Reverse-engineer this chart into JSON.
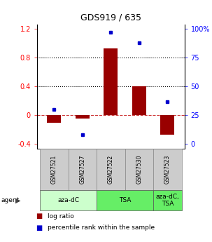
{
  "title": "GDS919 / 635",
  "samples": [
    "GSM27521",
    "GSM27527",
    "GSM27522",
    "GSM27530",
    "GSM27523"
  ],
  "log_ratio": [
    -0.1,
    -0.05,
    0.93,
    0.4,
    -0.27
  ],
  "percentile_rank": [
    30,
    8,
    97,
    88,
    37
  ],
  "agents": [
    {
      "label": "aza-dC",
      "start": 0,
      "end": 2,
      "color": "#ccffcc"
    },
    {
      "label": "TSA",
      "start": 2,
      "end": 4,
      "color": "#66ee66"
    },
    {
      "label": "aza-dC,\nTSA",
      "start": 4,
      "end": 5,
      "color": "#66ee66"
    }
  ],
  "bar_color": "#990000",
  "dot_color": "#0000cc",
  "left_yticks": [
    -0.4,
    0.0,
    0.4,
    0.8,
    1.2
  ],
  "left_yticklabels": [
    "-0.4",
    "0",
    "0.4",
    "0.8",
    "1.2"
  ],
  "right_yticks": [
    0,
    25,
    50,
    75,
    100
  ],
  "right_yticklabels": [
    "0",
    "25",
    "50",
    "75",
    "100%"
  ],
  "hline_dotted": [
    0.4,
    0.8
  ],
  "hline_dashed": [
    0.0
  ],
  "ylim_left": [
    -0.4667,
    1.2667
  ],
  "legend_items": [
    {
      "color": "#990000",
      "label": "log ratio"
    },
    {
      "color": "#0000cc",
      "label": "percentile rank within the sample"
    }
  ],
  "sample_bg": "#cccccc",
  "bar_width": 0.5
}
